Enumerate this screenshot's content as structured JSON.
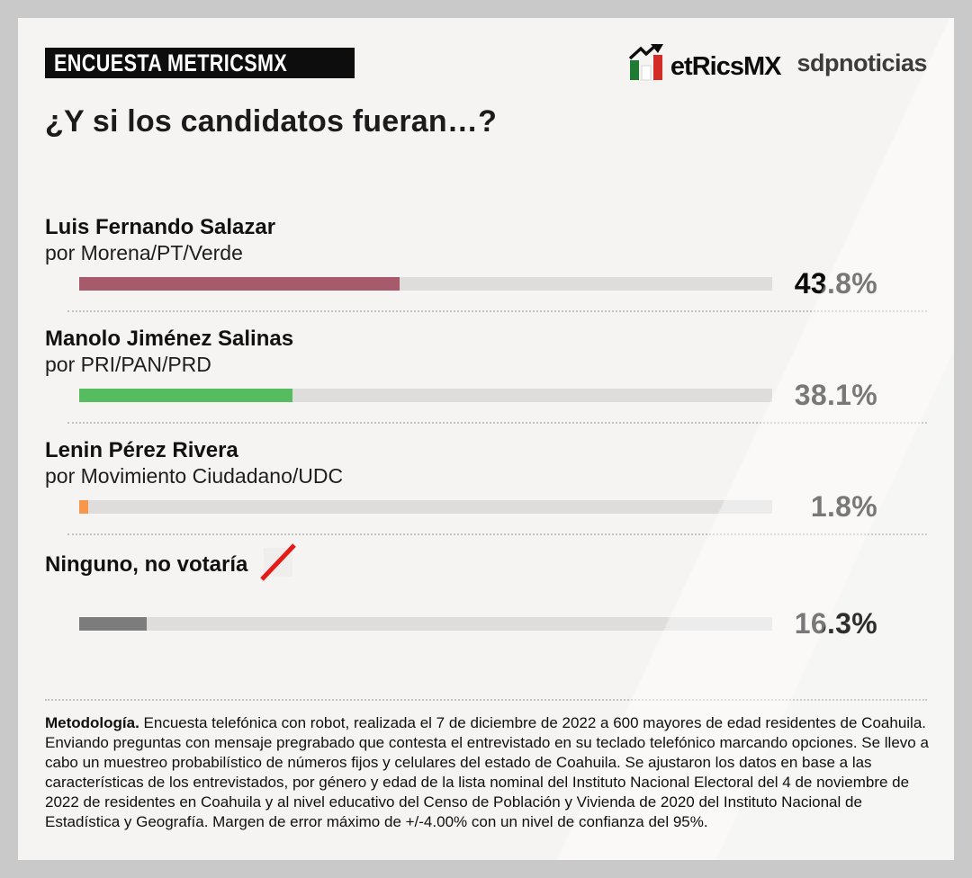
{
  "header": {
    "badge": "ENCUESTA METRICSMX",
    "brand": {
      "metrics_wordmark": "etRicsMX",
      "sdp_wordmark": "sdpnoticias"
    },
    "title": "¿Y si los candidatos fueran…?"
  },
  "chart_data": {
    "type": "bar",
    "orientation": "horizontal",
    "unit": "%",
    "title": "¿Y si los candidatos fueran…?",
    "track_color": "#dedddc",
    "items": [
      {
        "name": "Luis Fernando Salazar",
        "party": "por Morena/PT/Verde",
        "value": 43.8,
        "value_label": "43.8%",
        "color": "#a65a6c",
        "bar_fraction": 0.462
      },
      {
        "name": "Manolo Jiménez Salinas",
        "party": "por PRI/PAN/PRD",
        "value": 38.1,
        "value_label": "38.1%",
        "color": "#55bd60",
        "bar_fraction": 0.308
      },
      {
        "name": "Lenin Pérez Rivera",
        "party": "por Movimiento Ciudadano/UDC",
        "value": 1.8,
        "value_label": "1.8%",
        "color": "#f8964a",
        "bar_fraction": 0.013
      },
      {
        "name": "Ninguno, no votaría",
        "party": "",
        "value": 16.3,
        "value_label": "16.3%",
        "color": "#7c7c7c",
        "bar_fraction": 0.097,
        "icon": "no-vote-slash"
      }
    ]
  },
  "methodology": {
    "lead": "Metodología.",
    "text": " Encuesta telefónica con robot, realizada el 7 de diciembre de 2022 a 600 mayores de edad residentes de Coahuila. Enviando preguntas con mensaje pregrabado que contesta el entrevistado en su teclado telefónico marcando opciones. Se llevo a cabo un muestreo probabilístico de números fijos y celulares del estado de Coahuila. Se ajustaron los datos en base a las características de los entrevistados, por género y edad de la lista nominal del Instituto Nacional Electoral del 4 de noviembre de 2022 de residentes en Coahuila y al nivel educativo del Censo de Población y Vivienda de 2020 del Instituto Nacional de Estadística y Geografía. Margen de error máximo de +/-4.00% con un nivel de confianza del 95%."
  }
}
